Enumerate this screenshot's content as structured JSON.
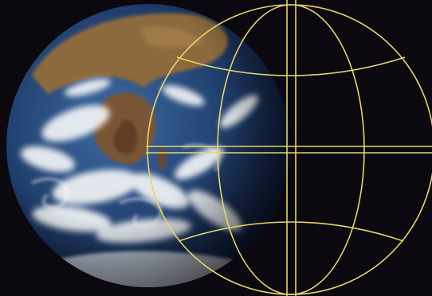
{
  "image": {
    "background_color": "#0c0810",
    "graticule_color": "#e6d66a",
    "earth_colors": {
      "ocean_dark": "#0f1f3f",
      "ocean_mid": "#2a4d80",
      "land_desert": "#8c6a3e",
      "land_dark": "#6d4b2e",
      "cloud": "#f2f4f7"
    }
  }
}
